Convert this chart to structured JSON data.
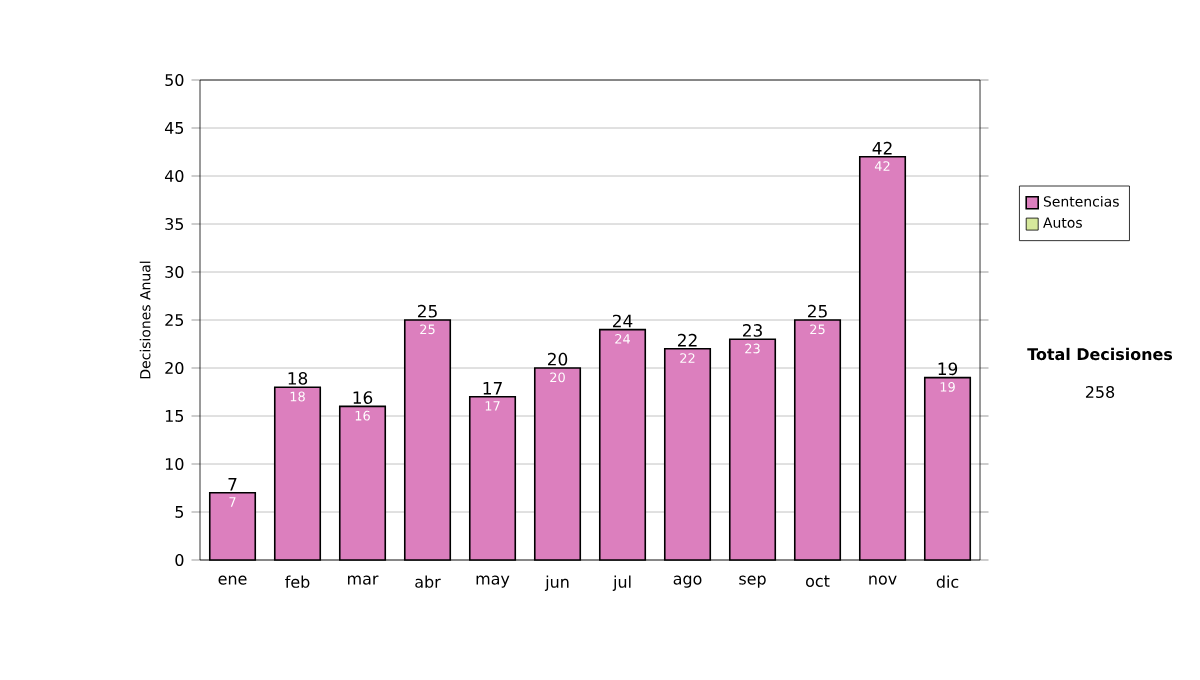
{
  "chart_data": {
    "type": "bar",
    "ylabel": "Decisiones Anual",
    "categories": [
      "ene",
      "feb",
      "mar",
      "abr",
      "may",
      "jun",
      "jul",
      "ago",
      "sep",
      "oct",
      "nov",
      "dic"
    ],
    "series": [
      {
        "name": "Sentencias",
        "color": "#dc7fbe",
        "values": [
          7,
          18,
          16,
          25,
          17,
          20,
          24,
          22,
          23,
          25,
          42,
          19
        ]
      },
      {
        "name": "Autos",
        "color": "#d6e89c",
        "values": [
          null,
          null,
          null,
          null,
          null,
          null,
          null,
          null,
          null,
          null,
          null,
          null
        ]
      }
    ],
    "ylim": [
      0,
      50
    ],
    "yticks": [
      0,
      5,
      10,
      15,
      20,
      25,
      30,
      35,
      40,
      45,
      50
    ],
    "totals": [
      "7",
      "18",
      "16",
      "25",
      "17",
      "20",
      "24",
      "22",
      "23",
      "25",
      "42",
      "19"
    ],
    "grid": "y",
    "legend": "right",
    "data_labels": true,
    "annotations": [
      "**Total Decisiones**",
      "258"
    ]
  }
}
